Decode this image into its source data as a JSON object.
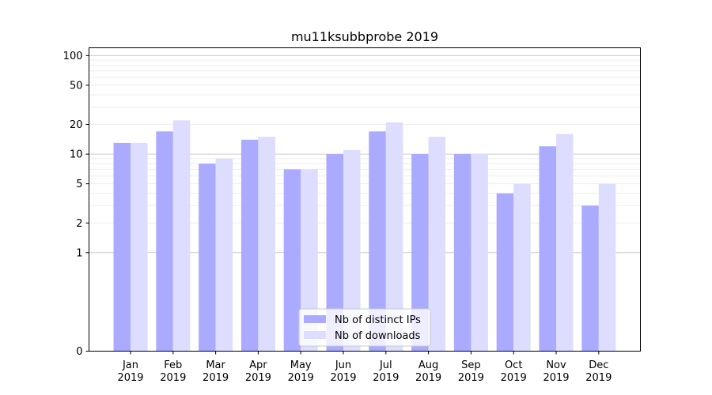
{
  "chart_data": {
    "type": "bar",
    "title": "mu11ksubbprobe 2019",
    "xlabel": "",
    "ylabel": "",
    "yscale": "symlog",
    "categories": [
      [
        "Jan",
        "2019"
      ],
      [
        "Feb",
        "2019"
      ],
      [
        "Mar",
        "2019"
      ],
      [
        "Apr",
        "2019"
      ],
      [
        "May",
        "2019"
      ],
      [
        "Jun",
        "2019"
      ],
      [
        "Jul",
        "2019"
      ],
      [
        "Aug",
        "2019"
      ],
      [
        "Sep",
        "2019"
      ],
      [
        "Oct",
        "2019"
      ],
      [
        "Nov",
        "2019"
      ],
      [
        "Dec",
        "2019"
      ]
    ],
    "series": [
      {
        "name": "Nb of distinct IPs",
        "color": "#aaaaff",
        "values": [
          13,
          17,
          8,
          14,
          7,
          10,
          17,
          10,
          10,
          4,
          12,
          3
        ]
      },
      {
        "name": "Nb of downloads",
        "color": "#ddddff",
        "values": [
          13,
          22,
          9,
          15,
          7,
          11,
          21,
          15,
          10,
          5,
          16,
          5
        ]
      }
    ],
    "yticks": [
      0,
      1,
      2,
      5,
      10,
      20,
      50,
      100
    ],
    "ylim": [
      0,
      120
    ],
    "legend_position": "lower-center",
    "grid": true
  }
}
